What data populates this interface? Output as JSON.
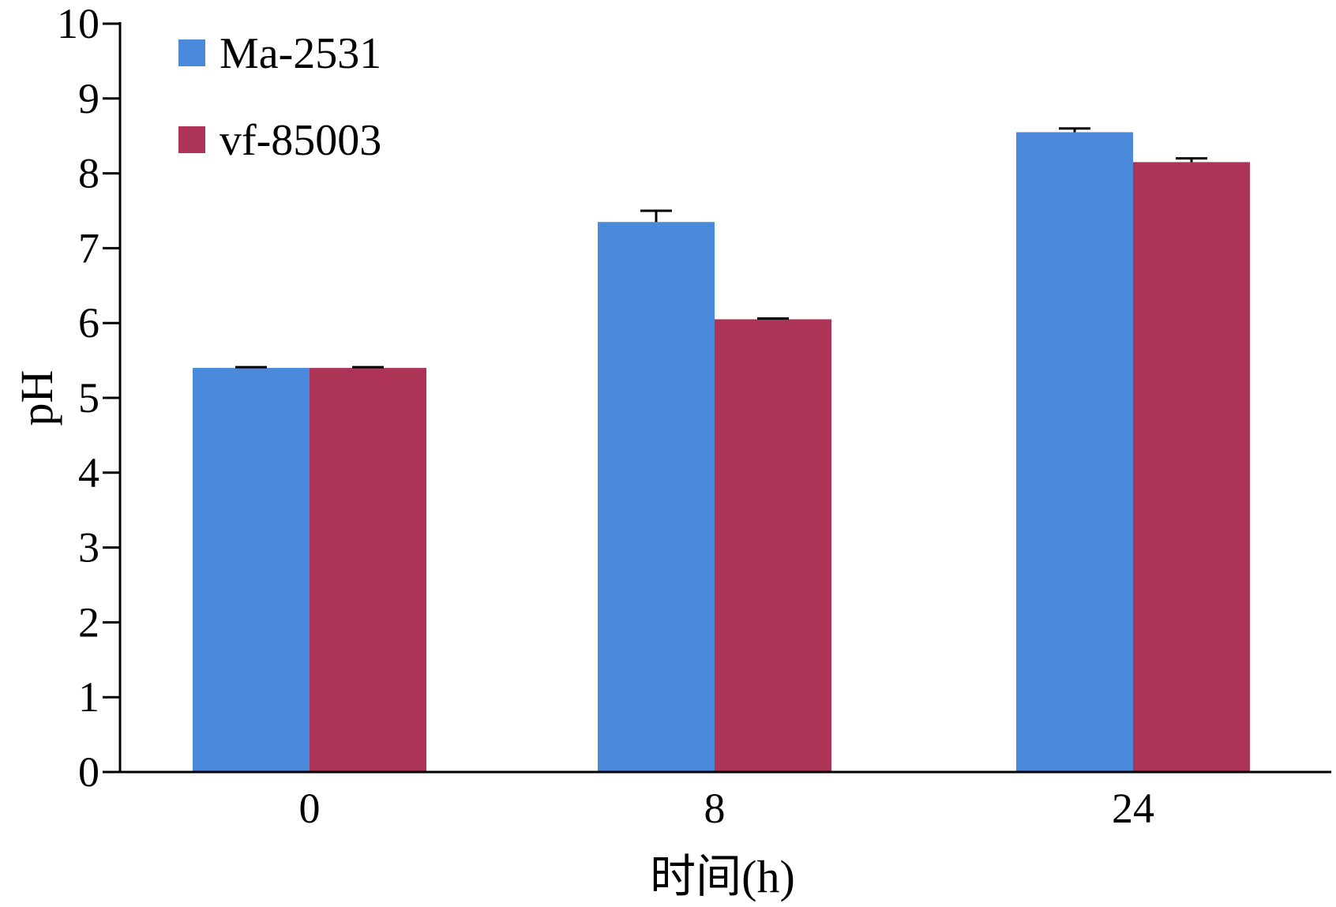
{
  "chart_data": {
    "type": "bar",
    "categories": [
      "0",
      "8",
      "24"
    ],
    "series": [
      {
        "name": "Ma-2531",
        "color": "#4A89DC",
        "values": [
          5.4,
          7.35,
          8.55
        ],
        "errors": [
          0.01,
          0.15,
          0.05
        ]
      },
      {
        "name": "vf-85003",
        "color": "#AE3457",
        "values": [
          5.4,
          6.05,
          8.15
        ],
        "errors": [
          0.01,
          0.01,
          0.05
        ]
      }
    ],
    "xlabel": "时间(h)",
    "ylabel": "pH",
    "ylim": [
      0,
      10
    ],
    "yticks": [
      "0",
      "1",
      "2",
      "3",
      "4",
      "5",
      "6",
      "7",
      "8",
      "9",
      "10"
    ],
    "grid": false,
    "legend_position": "top-left"
  }
}
